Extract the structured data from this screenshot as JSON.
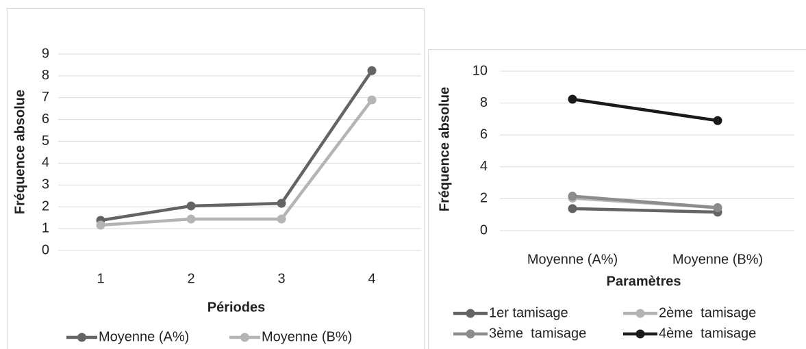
{
  "chart_data": [
    {
      "type": "line",
      "categories": [
        "1",
        "2",
        "3",
        "4"
      ],
      "series": [
        {
          "name": "Moyenne (A%)",
          "color": "#646464",
          "values": [
            1.38,
            2.04,
            2.16,
            8.24
          ]
        },
        {
          "name": "Moyenne (B%)",
          "color": "#b4b4b4",
          "values": [
            1.16,
            1.44,
            1.44,
            6.9
          ]
        }
      ],
      "ylabel": "Fréquence absolue",
      "xlabel": "Périodes",
      "ylim": [
        0,
        9
      ],
      "yticks": [
        0,
        1,
        2,
        3,
        4,
        5,
        6,
        7,
        8,
        9
      ],
      "grid": true,
      "legend": "bottom"
    },
    {
      "type": "line",
      "categories": [
        "Moyenne (A%)",
        "Moyenne (B%)"
      ],
      "series": [
        {
          "name": "1er tamisage",
          "color": "#646464",
          "values": [
            1.38,
            1.16
          ]
        },
        {
          "name": "2ème  tamisage",
          "color": "#b4b4b4",
          "values": [
            2.04,
            1.44
          ]
        },
        {
          "name": "3ème  tamisage",
          "color": "#8c8c8c",
          "values": [
            2.16,
            1.44
          ]
        },
        {
          "name": "4ème  tamisage",
          "color": "#1a1a1a",
          "values": [
            8.24,
            6.9
          ]
        }
      ],
      "ylabel": "Fréquence absolue",
      "xlabel": "Paramètres",
      "ylim": [
        0,
        10
      ],
      "yticks": [
        0,
        2,
        4,
        6,
        8,
        10
      ],
      "grid": true,
      "legend": "bottom"
    }
  ]
}
